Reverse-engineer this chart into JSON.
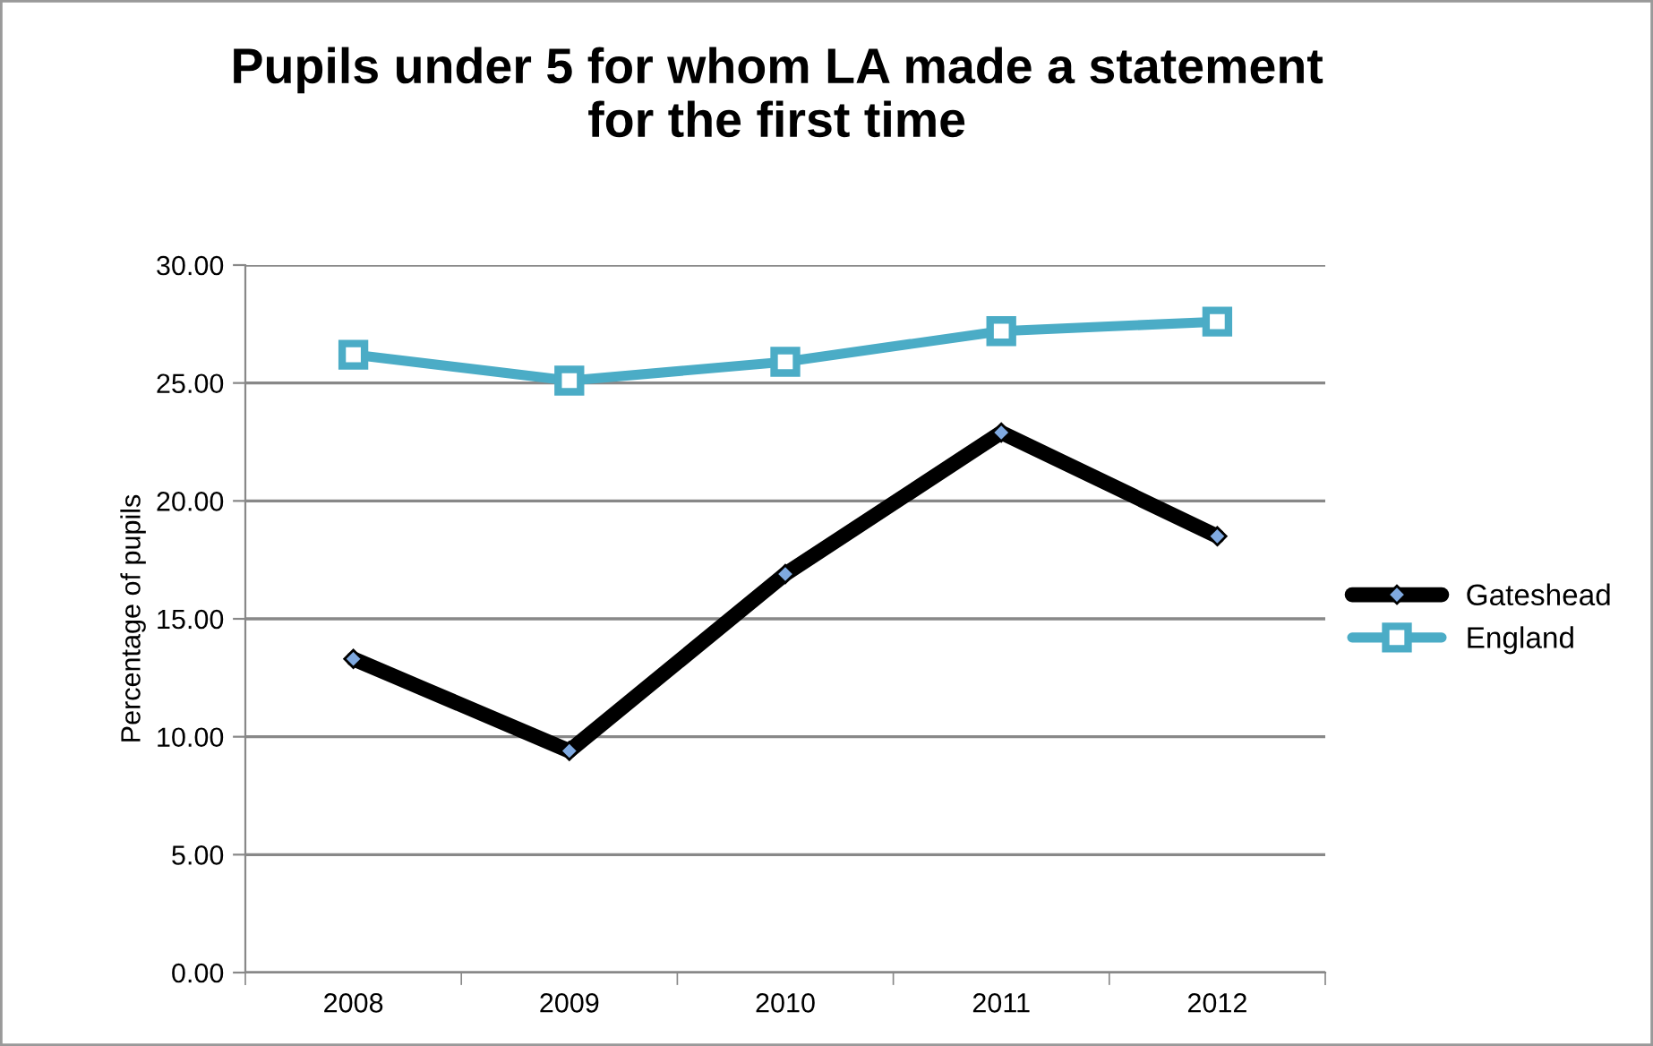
{
  "chart_data": {
    "type": "line",
    "title": "Pupils under 5 for whom LA made a statement\nfor the first time",
    "ylabel": "Percentage of pupils",
    "categories": [
      "2008",
      "2009",
      "2010",
      "2011",
      "2012"
    ],
    "series": [
      {
        "name": "Gateshead",
        "color": "#000000",
        "values": [
          13.3,
          9.4,
          16.9,
          22.9,
          18.5
        ],
        "marker": "diamond"
      },
      {
        "name": "England",
        "color": "#4bacc6",
        "values": [
          26.2,
          25.1,
          25.9,
          27.2,
          27.6
        ],
        "marker": "square"
      }
    ],
    "ylim": [
      0,
      30
    ],
    "yticks": [
      {
        "value": 0,
        "label": "0.00"
      },
      {
        "value": 5,
        "label": "5.00"
      },
      {
        "value": 10,
        "label": "10.00"
      },
      {
        "value": 15,
        "label": "15.00"
      },
      {
        "value": 20,
        "label": "20.00"
      },
      {
        "value": 25,
        "label": "25.00"
      },
      {
        "value": 30,
        "label": "30.00"
      }
    ],
    "grid": "y",
    "legend": "right",
    "line_style": "solid"
  }
}
